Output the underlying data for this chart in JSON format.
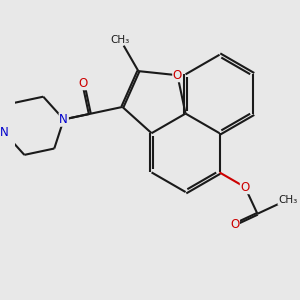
{
  "bg_color": "#e8e8e8",
  "bond_color": "#1a1a1a",
  "oxygen_color": "#cc0000",
  "nitrogen_color": "#0000cc",
  "bond_width": 1.5,
  "dbo": 0.055,
  "figsize": [
    3.0,
    3.0
  ],
  "dpi": 100,
  "xlim": [
    -4.5,
    5.5
  ],
  "ylim": [
    -3.5,
    4.5
  ]
}
